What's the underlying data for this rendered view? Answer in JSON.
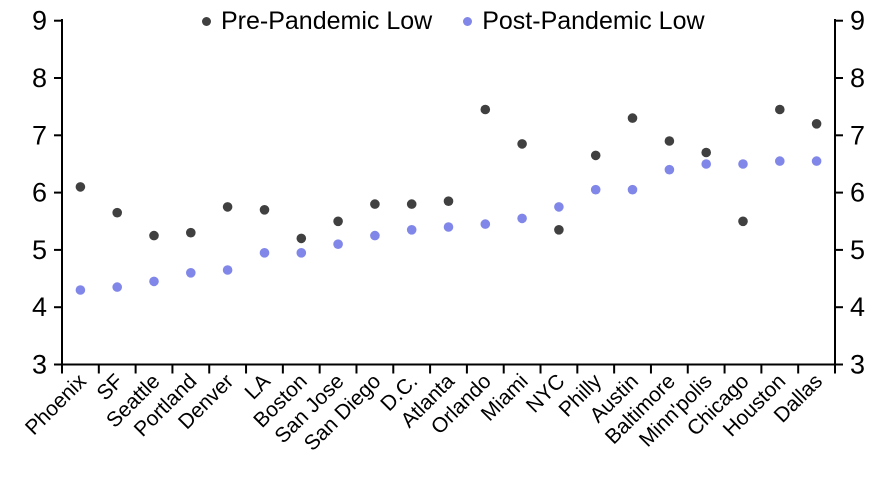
{
  "chart_data": {
    "type": "scatter",
    "title": "",
    "xlabel": "",
    "ylabel": "",
    "categories": [
      "Phoenix",
      "SF",
      "Seattle",
      "Portland",
      "Denver",
      "LA",
      "Boston",
      "San Jose",
      "San Diego",
      "D.C.",
      "Atlanta",
      "Orlando",
      "Miami",
      "NYC",
      "Philly",
      "Austin",
      "Baltimore",
      "Minn'polis",
      "Chicago",
      "Houston",
      "Dallas"
    ],
    "series": [
      {
        "name": "Pre-Pandemic Low",
        "color": "#404040",
        "values": [
          6.1,
          5.65,
          5.25,
          5.3,
          5.75,
          5.7,
          5.2,
          5.5,
          5.8,
          5.8,
          5.85,
          7.45,
          6.85,
          5.35,
          6.65,
          7.3,
          6.9,
          6.7,
          5.5,
          7.45,
          7.2
        ]
      },
      {
        "name": "Post-Pandemic Low",
        "color": "#8187e8",
        "values": [
          4.3,
          4.35,
          4.45,
          4.6,
          4.65,
          4.95,
          4.95,
          5.1,
          5.25,
          5.35,
          5.4,
          5.45,
          5.55,
          5.75,
          6.05,
          6.05,
          6.4,
          6.5,
          6.5,
          6.55,
          6.55
        ]
      }
    ],
    "ylim": [
      3,
      9
    ],
    "yticks": [
      3,
      4,
      5,
      6,
      7,
      8,
      9
    ],
    "y_axis_sides": "both",
    "grid": false,
    "legend_position": "top"
  }
}
